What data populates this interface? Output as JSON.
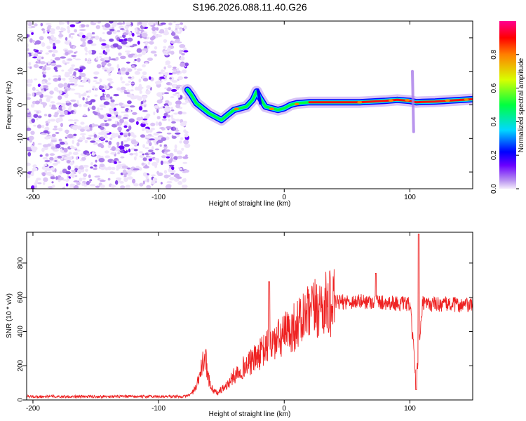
{
  "title": "S196.2026.088.11.40.G26",
  "chart_data": [
    {
      "type": "heatmap",
      "xlabel": "Height of straight line (km)",
      "ylabel": "Frequency (Hz)",
      "xlim": [
        -205,
        150
      ],
      "ylim": [
        -25,
        25
      ],
      "xticks": [
        -200,
        -100,
        0,
        100
      ],
      "yticks": [
        -20,
        -10,
        0,
        10,
        20
      ],
      "colorbar": {
        "label": "Normalized spectral amplitude",
        "range": [
          0,
          1
        ],
        "ticks": [
          "0.0",
          "0.2",
          "0.4",
          "0.6",
          "0.8"
        ],
        "colors": [
          "#f4ecfb",
          "#b892f0",
          "#6a00ff",
          "#0000ff",
          "#00d8ff",
          "#00ff40",
          "#d8ff00",
          "#ff8000",
          "#ff0000",
          "#ff0090"
        ]
      },
      "noise_region_x": [
        -205,
        -77
      ],
      "ridge": {
        "x": [
          -77,
          -74,
          -70,
          -65,
          -60,
          -55,
          -50,
          -45,
          -40,
          -35,
          -30,
          -25,
          -22,
          -20,
          -15,
          -10,
          -5,
          0,
          5,
          10,
          20,
          40,
          60,
          80,
          90,
          100,
          105,
          110,
          120,
          150
        ],
        "y": [
          4.5,
          3,
          0.5,
          -1,
          -2.5,
          -3.5,
          -4.5,
          -3,
          -1.5,
          -1,
          -0.5,
          1.5,
          4,
          2.5,
          -0.5,
          -1,
          -1.5,
          -1,
          0,
          0.5,
          0.8,
          0.8,
          0.8,
          1.2,
          1.5,
          1.2,
          0.8,
          0.9,
          1,
          1.7
        ]
      }
    },
    {
      "type": "line",
      "xlabel": "Height of straight line (km)",
      "ylabel": "SNR (10 * v/v)",
      "xlim": [
        -205,
        150
      ],
      "ylim": [
        0,
        980
      ],
      "xticks": [
        -200,
        -100,
        0,
        100
      ],
      "yticks": [
        0,
        200,
        400,
        600,
        800
      ],
      "series": [
        {
          "name": "SNR",
          "color": "#ee2222",
          "x": [
            -205,
            -180,
            -150,
            -120,
            -100,
            -80,
            -75,
            -70,
            -66,
            -63,
            -60,
            -57,
            -53,
            -50,
            -45,
            -40,
            -35,
            -30,
            -25,
            -20,
            -15,
            -12,
            -10,
            -7,
            -5,
            0,
            5,
            10,
            15,
            20,
            25,
            30,
            35,
            40,
            50,
            60,
            70,
            80,
            90,
            95,
            100,
            103,
            105,
            108,
            110,
            120,
            130,
            140,
            150
          ],
          "y": [
            20,
            20,
            20,
            20,
            20,
            20,
            30,
            70,
            180,
            260,
            120,
            60,
            40,
            60,
            90,
            140,
            180,
            200,
            230,
            260,
            300,
            320,
            330,
            340,
            350,
            380,
            410,
            440,
            470,
            500,
            530,
            550,
            560,
            570,
            575,
            575,
            575,
            570,
            565,
            560,
            560,
            300,
            120,
            350,
            560,
            560,
            560,
            555,
            550
          ]
        }
      ],
      "annotations": [
        {
          "x": -62,
          "y": 380,
          "text": ""
        }
      ]
    }
  ]
}
